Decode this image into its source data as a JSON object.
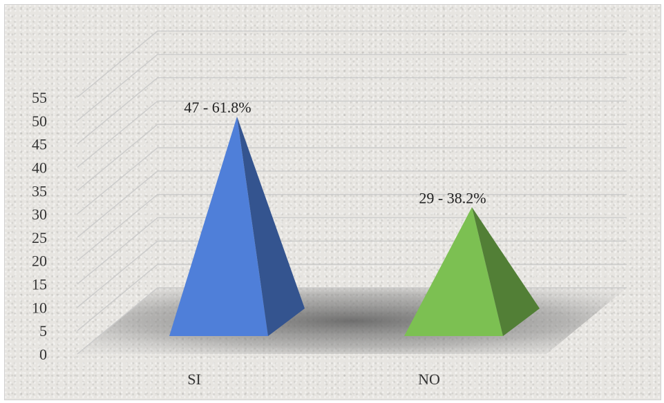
{
  "chart_data": {
    "type": "bar",
    "style": "3d-pyramid",
    "categories": [
      "SI",
      "NO"
    ],
    "values": [
      47,
      29
    ],
    "data_labels": [
      "47 - 61.8%",
      "29 - 38.2%"
    ],
    "colors": [
      "#4f7fd9",
      "#7cc052"
    ],
    "ylim": [
      0,
      55
    ],
    "yticks": [
      0,
      5,
      10,
      15,
      20,
      25,
      30,
      35,
      40,
      45,
      50,
      55
    ],
    "grid": true,
    "legend": "none"
  }
}
